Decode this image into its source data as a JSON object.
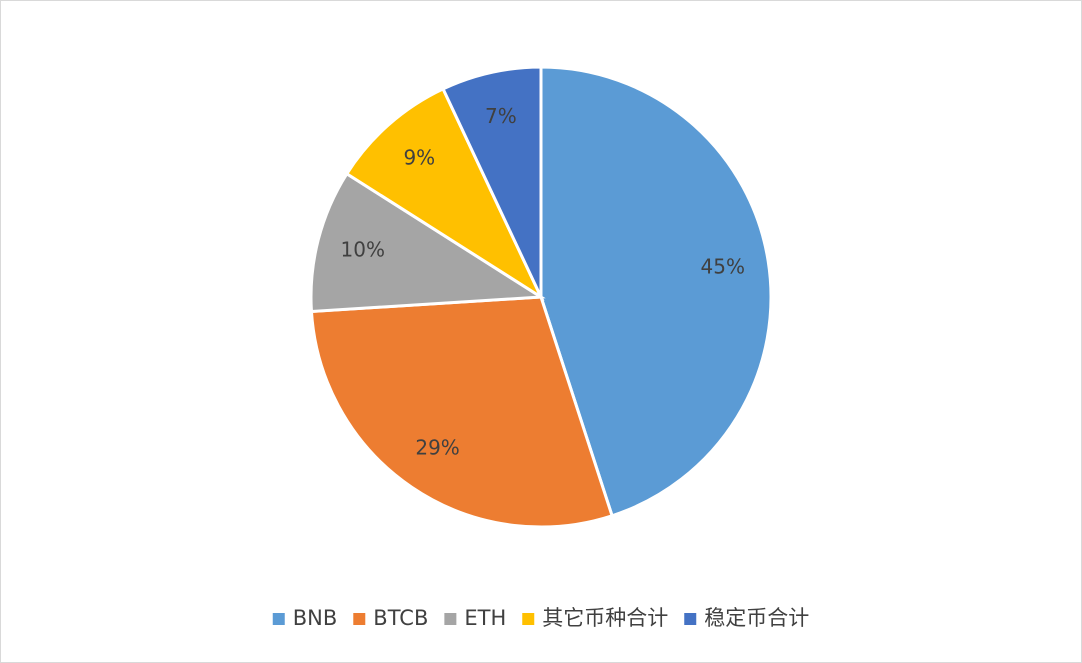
{
  "chart_data": {
    "type": "pie",
    "categories": [
      "BNB",
      "BTCB",
      "ETH",
      "其它币种合计",
      "稳定币合计"
    ],
    "values": [
      45,
      29,
      10,
      9,
      7
    ],
    "value_labels": [
      "45%",
      "29%",
      "10%",
      "9%",
      "7%"
    ],
    "colors": [
      "#5b9bd5",
      "#ed7d31",
      "#a5a5a5",
      "#ffc000",
      "#4472c4"
    ],
    "legend": "bottom"
  }
}
